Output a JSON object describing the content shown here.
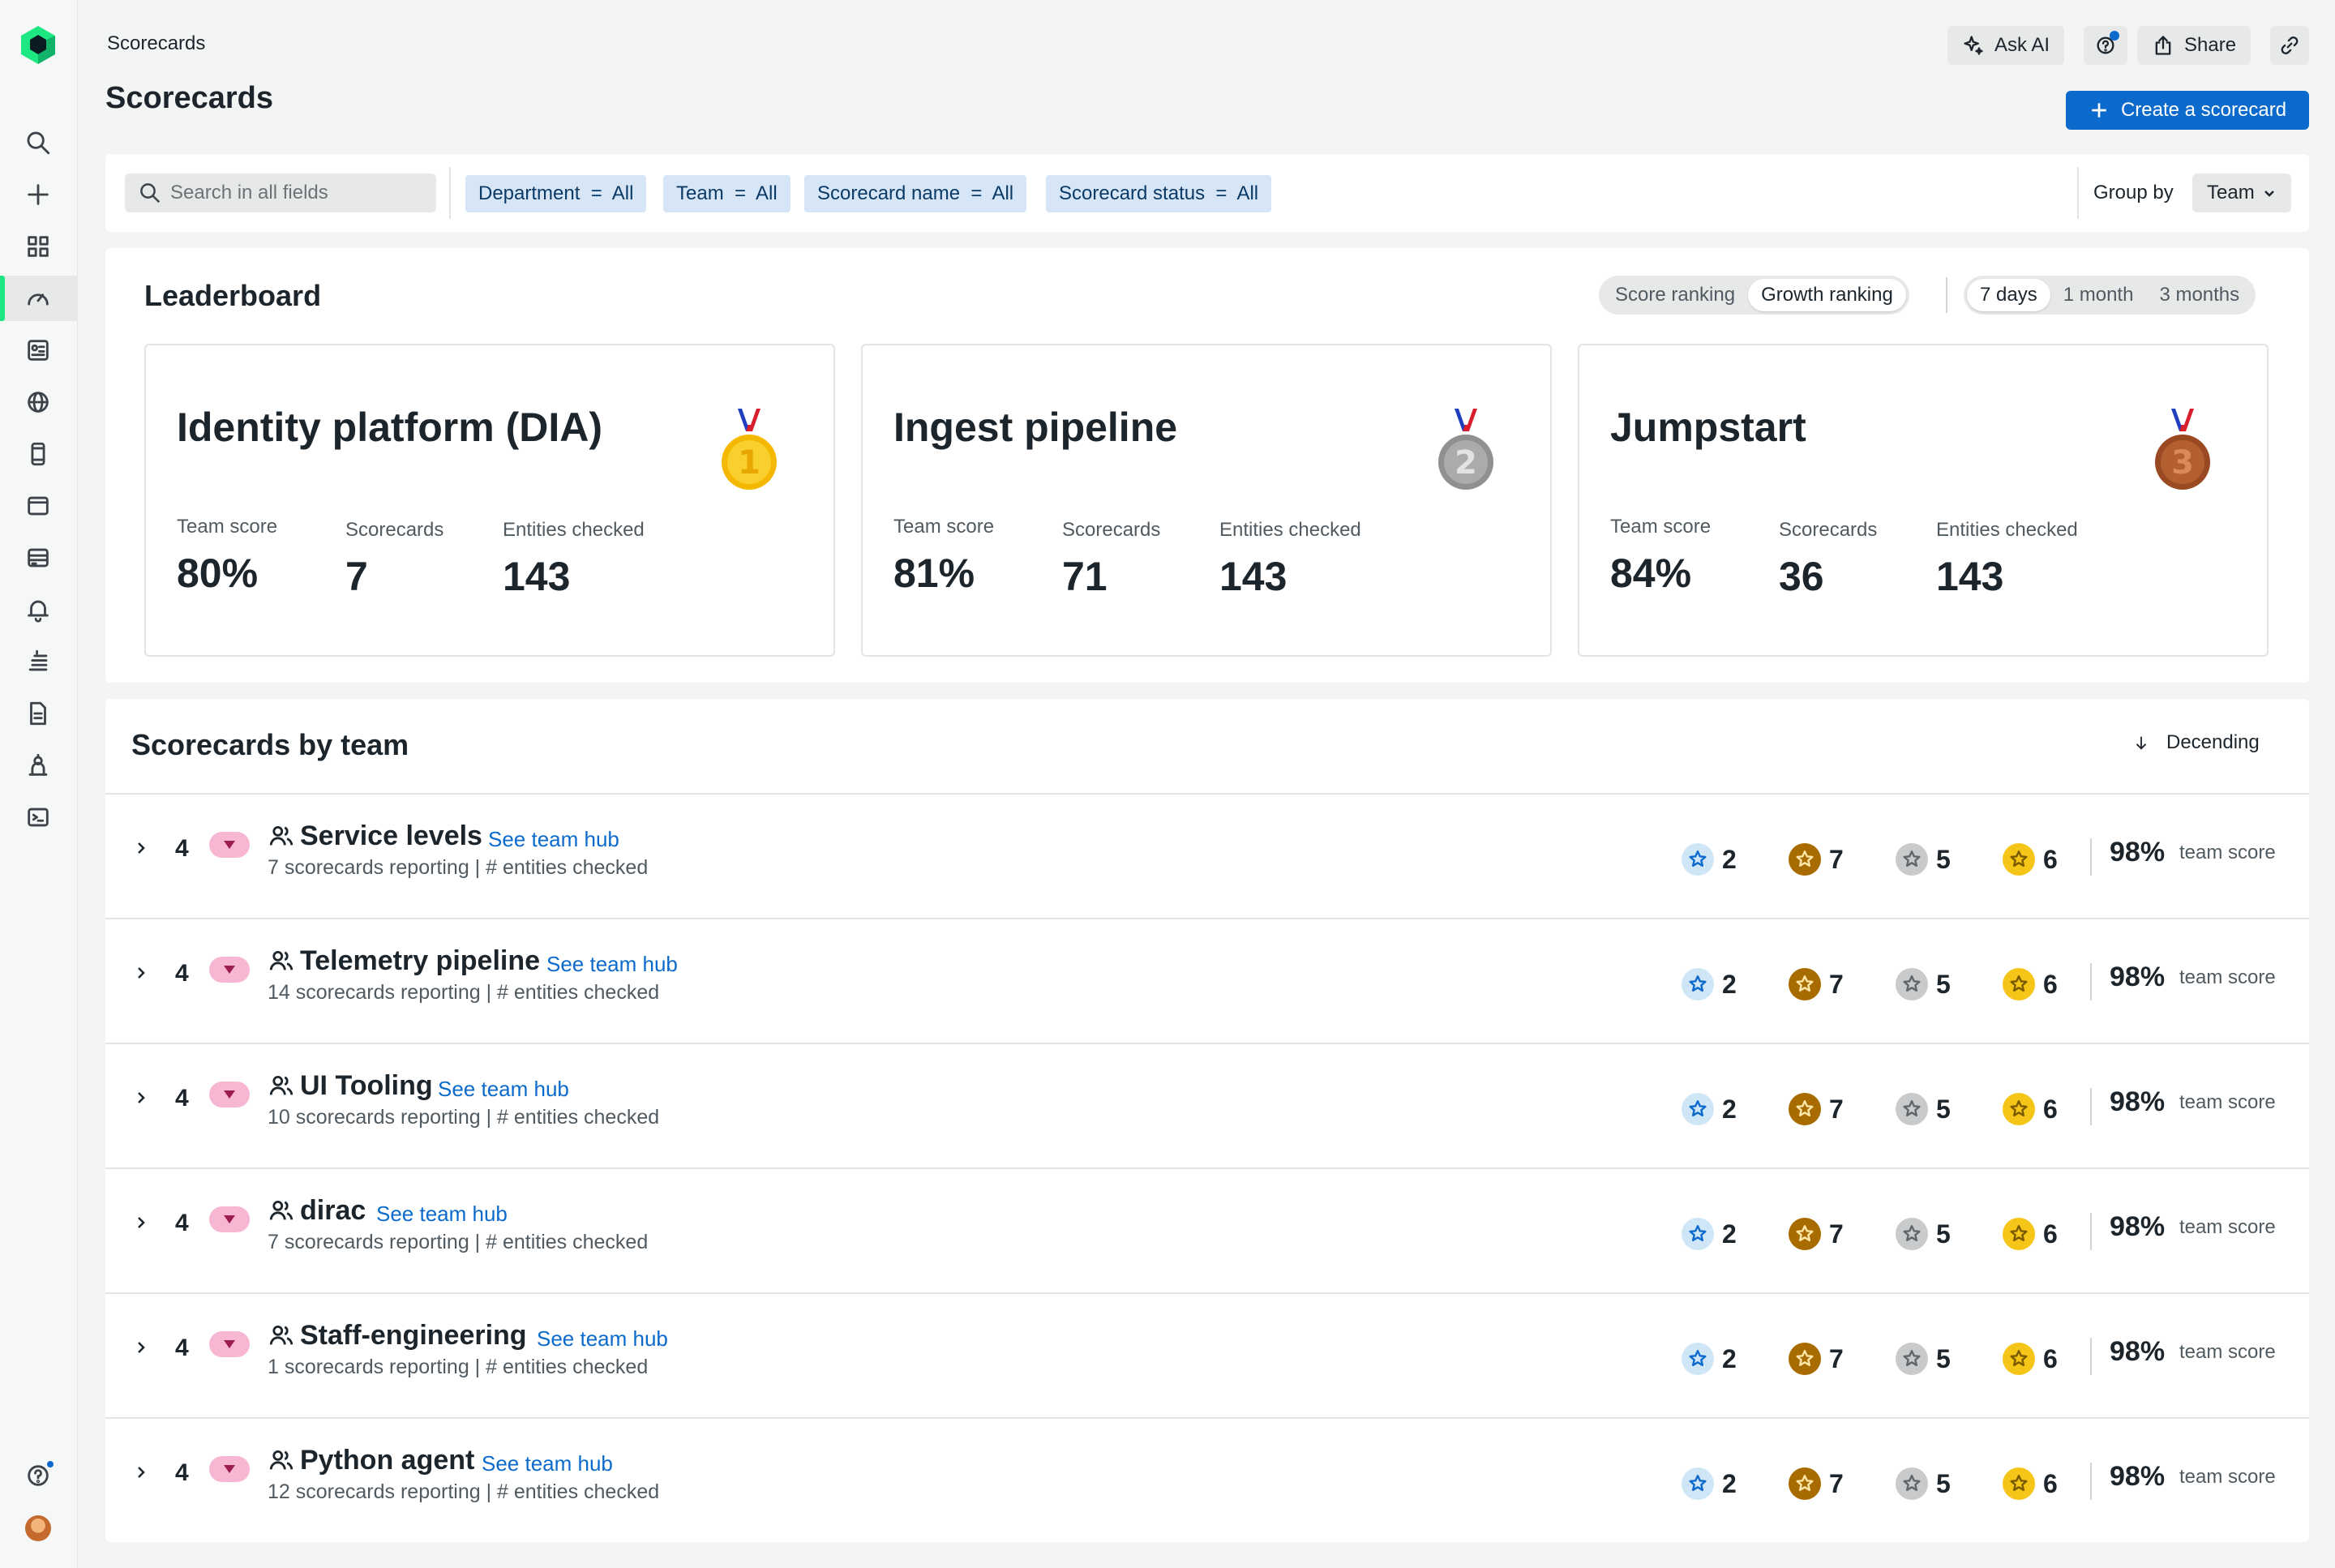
{
  "header": {
    "breadcrumb": "Scorecards",
    "title": "Scorecards",
    "ask_ai": "Ask AI",
    "share": "Share",
    "create_button": "Create a scorecard"
  },
  "filters": {
    "search_placeholder": "Search in all fields",
    "chips": [
      "Department  =  All",
      "Team  =  All",
      "Scorecard name  =  All",
      "Scorecard status  =  All"
    ],
    "group_by_label": "Group by",
    "group_by_value": "Team"
  },
  "leaderboard": {
    "title": "Leaderboard",
    "ranking_tabs": [
      "Score ranking",
      "Growth ranking"
    ],
    "ranking_selected": "Growth ranking",
    "period_tabs": [
      "7 days",
      "1 month",
      "3 months"
    ],
    "period_selected": "7 days",
    "labels": {
      "team_score": "Team score",
      "scorecards": "Scorecards",
      "entities": "Entities checked"
    },
    "cards": [
      {
        "name": "Identity platform (DIA)",
        "team_score": "80%",
        "scorecards": "7",
        "entities": "143",
        "medal": "1"
      },
      {
        "name": "Ingest pipeline",
        "team_score": "81%",
        "scorecards": "71",
        "entities": "143",
        "medal": "2"
      },
      {
        "name": "Jumpstart",
        "team_score": "84%",
        "scorecards": "36",
        "entities": "143",
        "medal": "3"
      }
    ]
  },
  "teams": {
    "title": "Scorecards by team",
    "sort_label": "Decending",
    "link_label": "See team hub",
    "score_label": "team score",
    "rows": [
      {
        "rank": "4",
        "name": "Service levels",
        "sub": "7 scorecards reporting | # entities checked",
        "counts": [
          "2",
          "7",
          "5",
          "6"
        ],
        "score": "98%"
      },
      {
        "rank": "4",
        "name": "Telemetry pipeline",
        "sub": "14 scorecards reporting | # entities checked",
        "counts": [
          "2",
          "7",
          "5",
          "6"
        ],
        "score": "98%"
      },
      {
        "rank": "4",
        "name": "UI Tooling",
        "sub": "10 scorecards reporting | # entities checked",
        "counts": [
          "2",
          "7",
          "5",
          "6"
        ],
        "score": "98%"
      },
      {
        "rank": "4",
        "name": "dirac",
        "sub": "7 scorecards reporting | # entities checked",
        "counts": [
          "2",
          "7",
          "5",
          "6"
        ],
        "score": "98%"
      },
      {
        "rank": "4",
        "name": "Staff-engineering",
        "sub": "1 scorecards reporting | # entities checked",
        "counts": [
          "2",
          "7",
          "5",
          "6"
        ],
        "score": "98%"
      },
      {
        "rank": "4",
        "name": "Python agent",
        "sub": "12 scorecards reporting | # entities checked",
        "counts": [
          "2",
          "7",
          "5",
          "6"
        ],
        "score": "98%"
      }
    ]
  },
  "colors": {
    "accent": "#0b6acb",
    "brand_green": "#1ce783",
    "chip_bg": "#d6e6f6",
    "trend_pink": "#f7b6d2",
    "badge_blue": "#cfe6f7",
    "badge_bronze": "#a86b00",
    "badge_silver": "#c8cacb",
    "badge_gold": "#f5c518"
  }
}
